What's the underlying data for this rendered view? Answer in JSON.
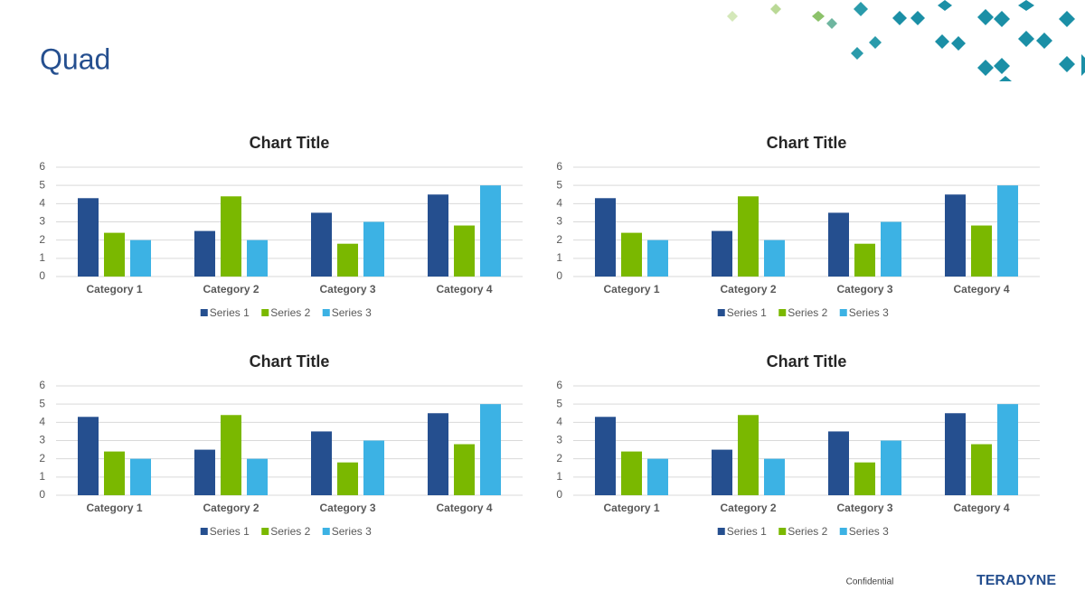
{
  "slide": {
    "title": "Quad",
    "footer": "Confidential",
    "logo": "TERADYNE"
  },
  "chart_data": [
    {
      "type": "bar",
      "title": "Chart Title",
      "categories": [
        "Category 1",
        "Category 2",
        "Category 3",
        "Category 4"
      ],
      "series": [
        {
          "name": "Series 1",
          "color": "#254f8f",
          "values": [
            4.3,
            2.5,
            3.5,
            4.5
          ]
        },
        {
          "name": "Series 2",
          "color": "#7ab800",
          "values": [
            2.4,
            4.4,
            1.8,
            2.8
          ]
        },
        {
          "name": "Series 3",
          "color": "#3cb2e4",
          "values": [
            2,
            2,
            3,
            5
          ]
        }
      ],
      "ylim": [
        0,
        6
      ],
      "yticks": [
        0,
        1,
        2,
        3,
        4,
        5,
        6
      ],
      "grid": true,
      "legend": "bottom"
    },
    {
      "type": "bar",
      "title": "Chart Title",
      "categories": [
        "Category 1",
        "Category 2",
        "Category 3",
        "Category 4"
      ],
      "series": [
        {
          "name": "Series 1",
          "color": "#254f8f",
          "values": [
            4.3,
            2.5,
            3.5,
            4.5
          ]
        },
        {
          "name": "Series 2",
          "color": "#7ab800",
          "values": [
            2.4,
            4.4,
            1.8,
            2.8
          ]
        },
        {
          "name": "Series 3",
          "color": "#3cb2e4",
          "values": [
            2,
            2,
            3,
            5
          ]
        }
      ],
      "ylim": [
        0,
        6
      ],
      "yticks": [
        0,
        1,
        2,
        3,
        4,
        5,
        6
      ],
      "grid": true,
      "legend": "bottom"
    },
    {
      "type": "bar",
      "title": "Chart Title",
      "categories": [
        "Category 1",
        "Category 2",
        "Category 3",
        "Category 4"
      ],
      "series": [
        {
          "name": "Series 1",
          "color": "#254f8f",
          "values": [
            4.3,
            2.5,
            3.5,
            4.5
          ]
        },
        {
          "name": "Series 2",
          "color": "#7ab800",
          "values": [
            2.4,
            4.4,
            1.8,
            2.8
          ]
        },
        {
          "name": "Series 3",
          "color": "#3cb2e4",
          "values": [
            2,
            2,
            3,
            5
          ]
        }
      ],
      "ylim": [
        0,
        6
      ],
      "yticks": [
        0,
        1,
        2,
        3,
        4,
        5,
        6
      ],
      "grid": true,
      "legend": "bottom"
    },
    {
      "type": "bar",
      "title": "Chart Title",
      "categories": [
        "Category 1",
        "Category 2",
        "Category 3",
        "Category 4"
      ],
      "series": [
        {
          "name": "Series 1",
          "color": "#254f8f",
          "values": [
            4.3,
            2.5,
            3.5,
            4.5
          ]
        },
        {
          "name": "Series 2",
          "color": "#7ab800",
          "values": [
            2.4,
            4.4,
            1.8,
            2.8
          ]
        },
        {
          "name": "Series 3",
          "color": "#3cb2e4",
          "values": [
            2,
            2,
            3,
            5
          ]
        }
      ],
      "ylim": [
        0,
        6
      ],
      "yticks": [
        0,
        1,
        2,
        3,
        4,
        5,
        6
      ],
      "grid": true,
      "legend": "bottom"
    }
  ]
}
